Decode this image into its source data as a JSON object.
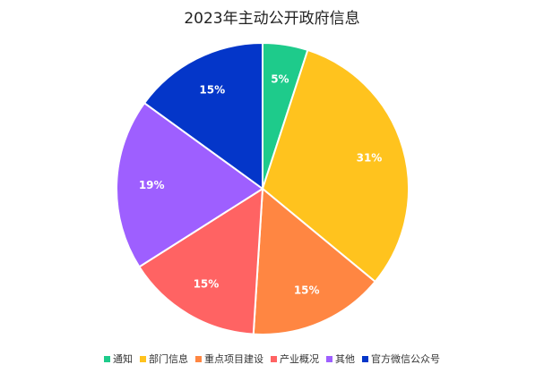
{
  "chart_data": {
    "type": "pie",
    "title": "2023年主动公开政府信息",
    "categories": [
      "通知",
      "部门信息",
      "重点项目建设",
      "产业概况",
      "其他",
      "官方微信公众号"
    ],
    "values": [
      5,
      31,
      15,
      15,
      19,
      15
    ],
    "labels": [
      "5%",
      "31%",
      "15%",
      "15%",
      "19%",
      "15%"
    ],
    "colors": [
      "#1ECB8B",
      "#FFC31E",
      "#FF8642",
      "#FF6363",
      "#9E5FFF",
      "#0436C9"
    ],
    "legend_position": "bottom",
    "start": "top",
    "direction": "clockwise"
  }
}
